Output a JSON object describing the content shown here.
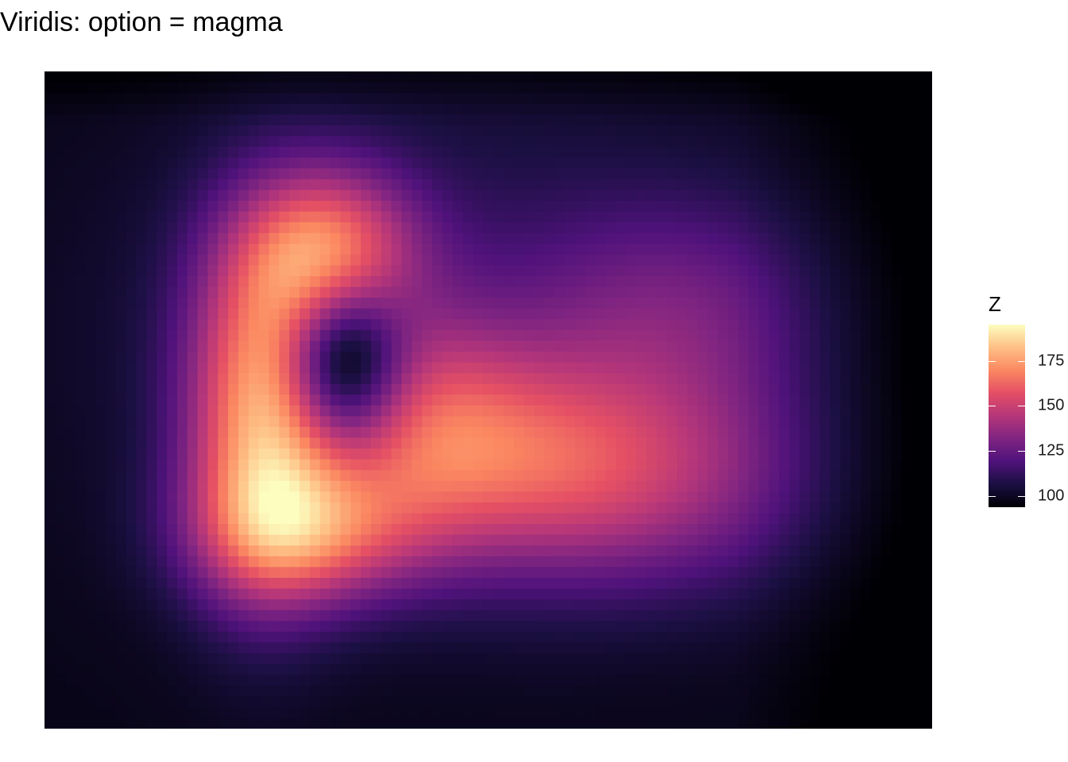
{
  "chart_data": {
    "type": "heatmap",
    "title": "Viridis: option = magma",
    "xlabel": "",
    "ylabel": "",
    "grid": false,
    "colormap": "magma",
    "grid_size": [
      87,
      61
    ],
    "legend": {
      "title": "Z",
      "placement": "right",
      "range": [
        94,
        195
      ],
      "ticks": [
        100,
        125,
        150,
        175
      ],
      "tick_labels": [
        "100",
        "125",
        "150",
        "175"
      ]
    },
    "peaks": [
      {
        "x": 0.245,
        "y": 0.52,
        "height": 70,
        "sx": 0.06,
        "sy": 0.18
      },
      {
        "x": 0.32,
        "y": 0.27,
        "height": 55,
        "sx": 0.07,
        "sy": 0.09
      },
      {
        "x": 0.3,
        "y": 0.7,
        "height": 50,
        "sx": 0.09,
        "sy": 0.08
      },
      {
        "x": 0.43,
        "y": 0.55,
        "height": 38,
        "sx": 0.08,
        "sy": 0.12
      },
      {
        "x": 0.56,
        "y": 0.6,
        "height": 35,
        "sx": 0.1,
        "sy": 0.12
      },
      {
        "x": 0.72,
        "y": 0.62,
        "height": 30,
        "sx": 0.12,
        "sy": 0.12
      },
      {
        "x": 0.72,
        "y": 0.36,
        "height": 22,
        "sx": 0.12,
        "sy": 0.12
      },
      {
        "x": 0.45,
        "y": 0.4,
        "height": 15,
        "sx": 0.25,
        "sy": 0.25
      },
      {
        "x": 0.335,
        "y": 0.44,
        "height": -50,
        "sx": 0.045,
        "sy": 0.08
      }
    ],
    "base": 98
  }
}
